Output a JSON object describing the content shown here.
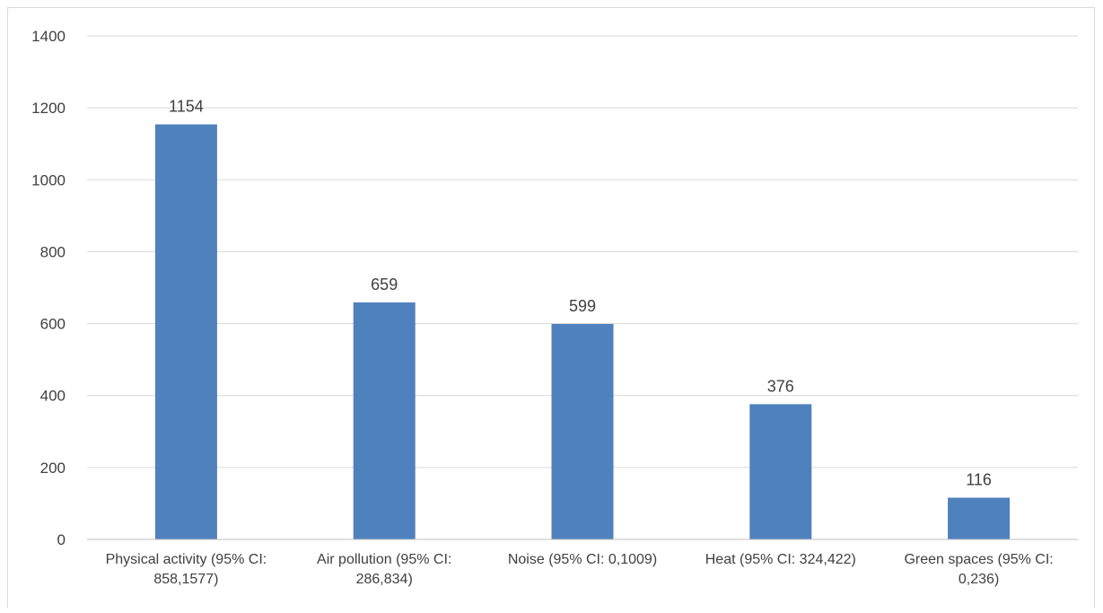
{
  "chart_data": {
    "type": "bar",
    "categories": [
      [
        "Physical activity (95% CI:",
        "858,1577)"
      ],
      [
        "Air pollution (95% CI:",
        "286,834)"
      ],
      [
        "Noise (95% CI: 0,1009)"
      ],
      [
        "Heat (95% CI: 324,422)"
      ],
      [
        "Green spaces (95% CI:",
        "0,236)"
      ]
    ],
    "values": [
      1154,
      659,
      599,
      376,
      116
    ],
    "data_labels": [
      "1154",
      "659",
      "599",
      "376",
      "116"
    ],
    "title": "",
    "xlabel": "",
    "ylabel": "",
    "ylim": [
      0,
      1400
    ],
    "yticks": [
      0,
      200,
      400,
      600,
      800,
      1000,
      1200,
      1400
    ],
    "ytick_labels": [
      "0",
      "200",
      "400",
      "600",
      "800",
      "1000",
      "1200",
      "1400"
    ],
    "grid": true,
    "legend": "none",
    "colors": {
      "bar": "#4f81bd",
      "grid": "#d9d9d9",
      "axis": "#bfbfbf",
      "text": "#404040"
    }
  }
}
